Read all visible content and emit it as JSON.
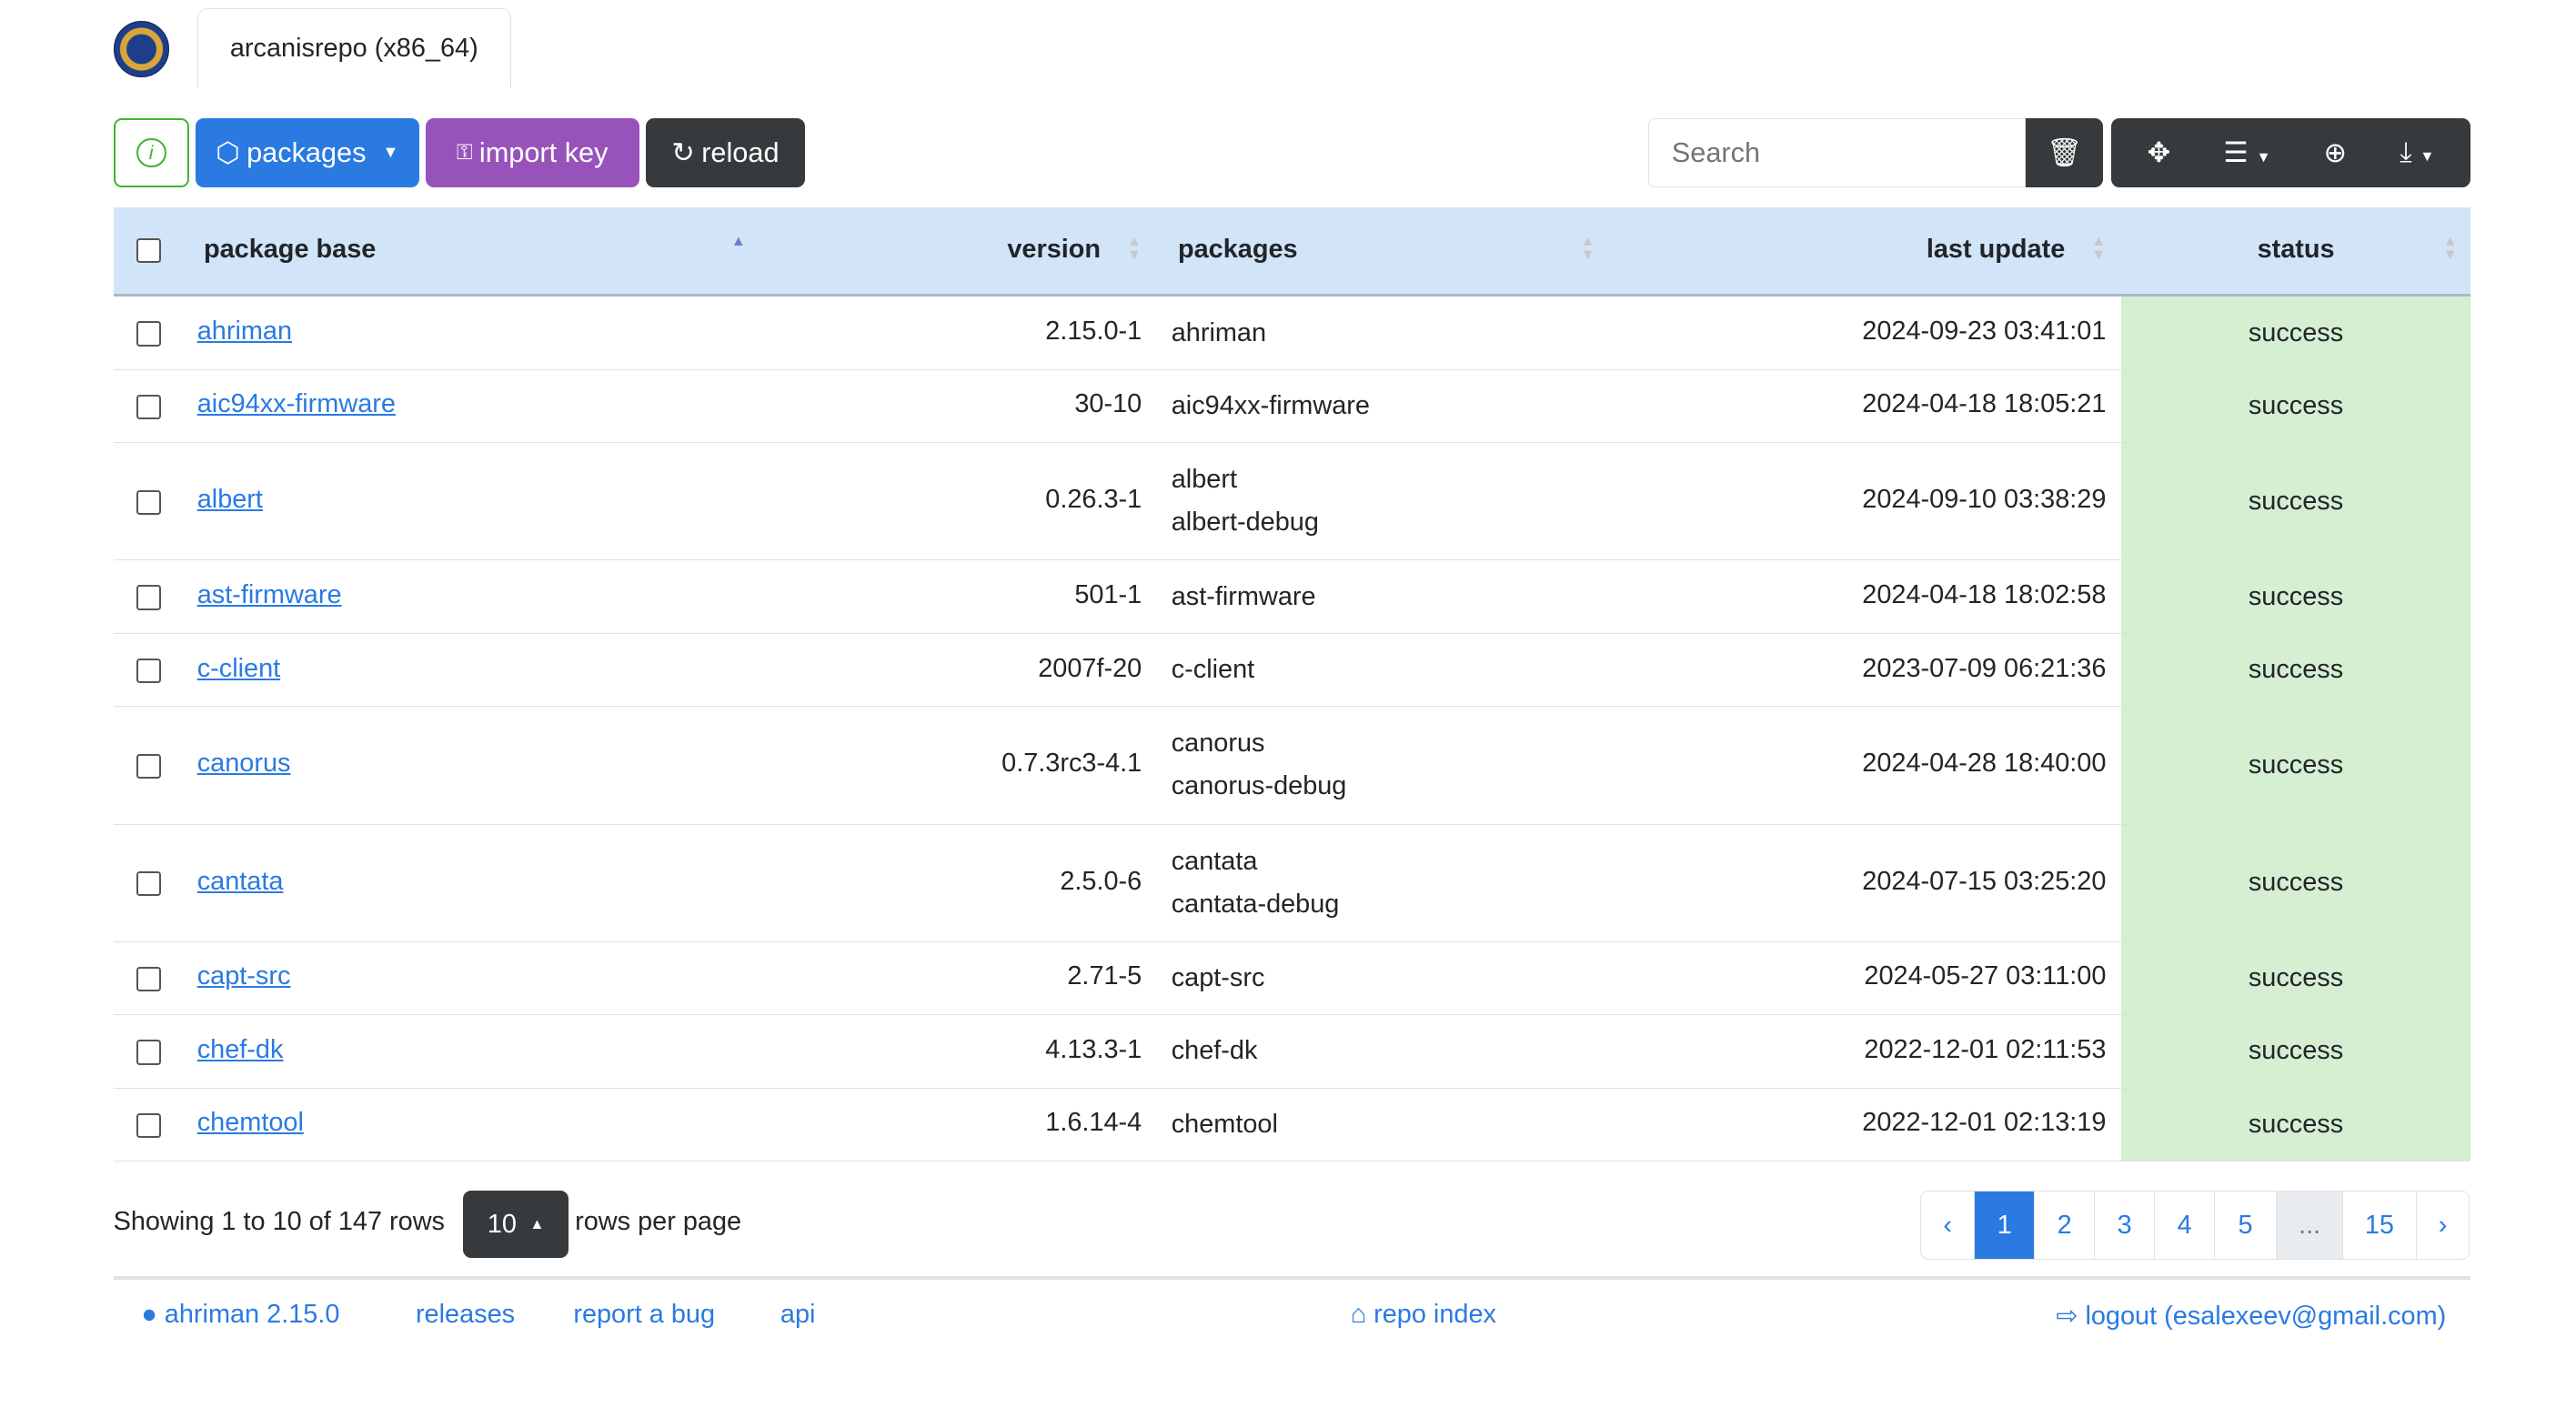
{
  "header": {
    "tab_title": "arcanisrepo (x86_64)"
  },
  "toolbar": {
    "packages_label": "packages",
    "import_key_label": "import key",
    "reload_label": "reload",
    "search_placeholder": "Search"
  },
  "table": {
    "columns": [
      "package base",
      "version",
      "packages",
      "last update",
      "status"
    ],
    "rows": [
      {
        "base": "ahriman",
        "version": "2.15.0-1",
        "packages": [
          "ahriman"
        ],
        "updated": "2024-09-23 03:41:01",
        "status": "success"
      },
      {
        "base": "aic94xx-firmware",
        "version": "30-10",
        "packages": [
          "aic94xx-firmware"
        ],
        "updated": "2024-04-18 18:05:21",
        "status": "success"
      },
      {
        "base": "albert",
        "version": "0.26.3-1",
        "packages": [
          "albert",
          "albert-debug"
        ],
        "updated": "2024-09-10 03:38:29",
        "status": "success"
      },
      {
        "base": "ast-firmware",
        "version": "501-1",
        "packages": [
          "ast-firmware"
        ],
        "updated": "2024-04-18 18:02:58",
        "status": "success"
      },
      {
        "base": "c-client",
        "version": "2007f-20",
        "packages": [
          "c-client"
        ],
        "updated": "2023-07-09 06:21:36",
        "status": "success"
      },
      {
        "base": "canorus",
        "version": "0.7.3rc3-4.1",
        "packages": [
          "canorus",
          "canorus-debug"
        ],
        "updated": "2024-04-28 18:40:00",
        "status": "success"
      },
      {
        "base": "cantata",
        "version": "2.5.0-6",
        "packages": [
          "cantata",
          "cantata-debug"
        ],
        "updated": "2024-07-15 03:25:20",
        "status": "success"
      },
      {
        "base": "capt-src",
        "version": "2.71-5",
        "packages": [
          "capt-src"
        ],
        "updated": "2024-05-27 03:11:00",
        "status": "success"
      },
      {
        "base": "chef-dk",
        "version": "4.13.3-1",
        "packages": [
          "chef-dk"
        ],
        "updated": "2022-12-01 02:11:53",
        "status": "success"
      },
      {
        "base": "chemtool",
        "version": "1.6.14-4",
        "packages": [
          "chemtool"
        ],
        "updated": "2022-12-01 02:13:19",
        "status": "success"
      }
    ]
  },
  "pagination": {
    "showing": "Showing 1 to 10 of 147 rows",
    "page_size": "10",
    "rows_per_page": "rows per page",
    "pages": [
      "‹",
      "1",
      "2",
      "3",
      "4",
      "5",
      "...",
      "15",
      "›"
    ],
    "active": "1"
  },
  "footer": {
    "version": "ahriman 2.15.0",
    "releases": "releases",
    "report": "report a bug",
    "api": "api",
    "repo_index": "repo index",
    "logout": "logout (esalexeev@gmail.com)"
  },
  "colors": {
    "primary": "#2a7ae2",
    "purple": "#9853ba",
    "dark": "#373a3c",
    "success_bg": "#d6eed1",
    "header_bg": "#d2e4f8",
    "info": "#3cb62c"
  }
}
